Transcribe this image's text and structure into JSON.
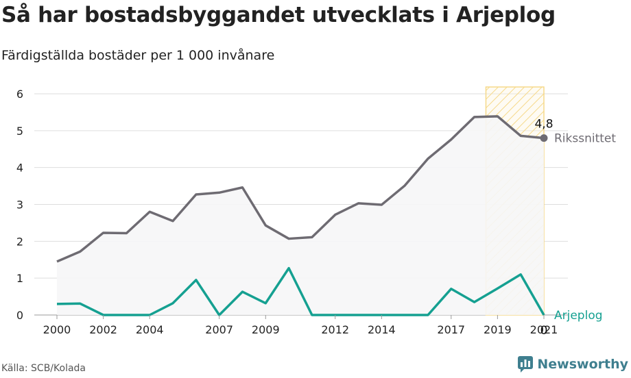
{
  "title": "Så har bostadsbyggandet utvecklats i Arjeplog",
  "subtitle": "Färdigställda bostäder per 1 000 invånare",
  "source": "Källa: SCB/Kolada",
  "brand": "Newsworthy",
  "colors": {
    "national": "#6e6b72",
    "local": "#15a091",
    "highlight_fill": "#f6d98a",
    "grid": "#dddddd",
    "area": "#f6f6f7"
  },
  "chart_data": {
    "type": "line",
    "x": [
      2000,
      2001,
      2002,
      2003,
      2004,
      2005,
      2006,
      2007,
      2008,
      2009,
      2010,
      2011,
      2012,
      2013,
      2014,
      2015,
      2016,
      2017,
      2018,
      2019,
      2020,
      2021
    ],
    "xticks": [
      "2000",
      "2002",
      "2004",
      "2007",
      "2009",
      "2012",
      "2014",
      "2017",
      "2019",
      "2021"
    ],
    "yticks": [
      "0",
      "1",
      "2",
      "3",
      "4",
      "5",
      "6"
    ],
    "ylim": [
      0,
      6
    ],
    "highlight_range": [
      2018.5,
      2021
    ],
    "series": [
      {
        "name": "Rikssnittet",
        "end_label": "4,8",
        "values": [
          1.45,
          1.72,
          2.23,
          2.22,
          2.8,
          2.55,
          3.27,
          3.32,
          3.46,
          2.43,
          2.07,
          2.11,
          2.72,
          3.03,
          2.99,
          3.51,
          4.24,
          4.76,
          5.37,
          5.39,
          4.86,
          4.8
        ]
      },
      {
        "name": "Arjeplog",
        "end_label": "0",
        "values": [
          0.3,
          0.31,
          0,
          0,
          0,
          0.32,
          0.95,
          0,
          0.63,
          0.32,
          1.27,
          0,
          0,
          0,
          0,
          0,
          0,
          0.71,
          0.35,
          0.72,
          1.1,
          0
        ]
      }
    ]
  }
}
